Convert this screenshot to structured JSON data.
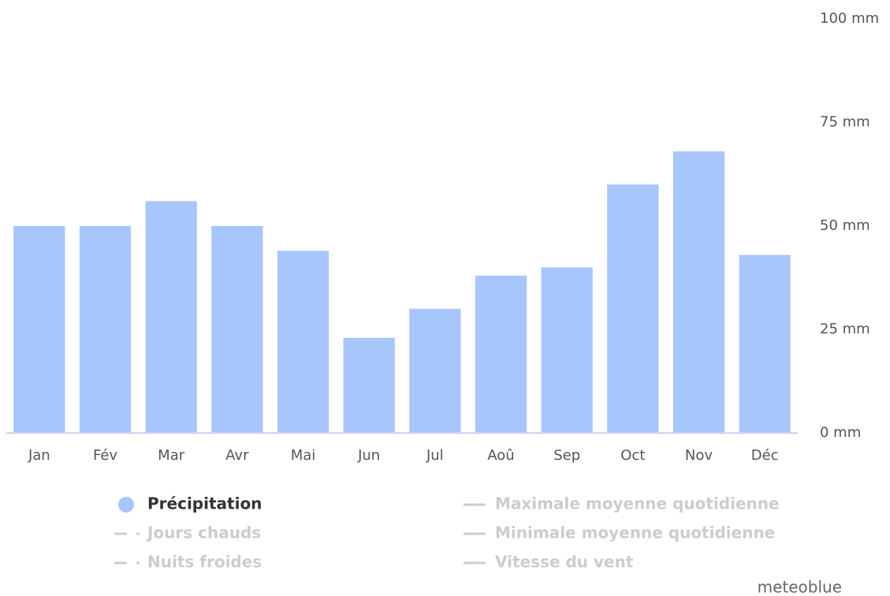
{
  "chart_data": {
    "type": "bar",
    "categories": [
      "Jan",
      "Fév",
      "Mar",
      "Avr",
      "Mai",
      "Jun",
      "Jul",
      "Aoû",
      "Sep",
      "Oct",
      "Nov",
      "Déc"
    ],
    "series": [
      {
        "name": "Précipitation",
        "color": "#a7c6fb",
        "values": [
          50,
          50,
          56,
          50,
          44,
          23,
          30,
          38,
          40,
          60,
          68,
          43
        ]
      }
    ],
    "ylim": [
      0,
      100
    ],
    "yticks": [
      {
        "value": 0,
        "label": "0 mm"
      },
      {
        "value": 25,
        "label": "25 mm"
      },
      {
        "value": 50,
        "label": "50 mm"
      },
      {
        "value": 75,
        "label": "75 mm"
      },
      {
        "value": 100,
        "label": "100 mm"
      }
    ],
    "y_axis_side": "right",
    "legend_items": [
      {
        "name": "Jours chauds",
        "symbol": "dash-dot",
        "active": false
      },
      {
        "name": "Nuits froides",
        "symbol": "dash-dot",
        "active": false
      },
      {
        "name": "Maximale moyenne quotidienne",
        "symbol": "line",
        "active": false
      },
      {
        "name": "Minimale moyenne quotidienne",
        "symbol": "line",
        "active": false
      },
      {
        "name": "Vitesse du vent",
        "symbol": "line",
        "active": false
      }
    ],
    "credit": "meteoblue"
  }
}
